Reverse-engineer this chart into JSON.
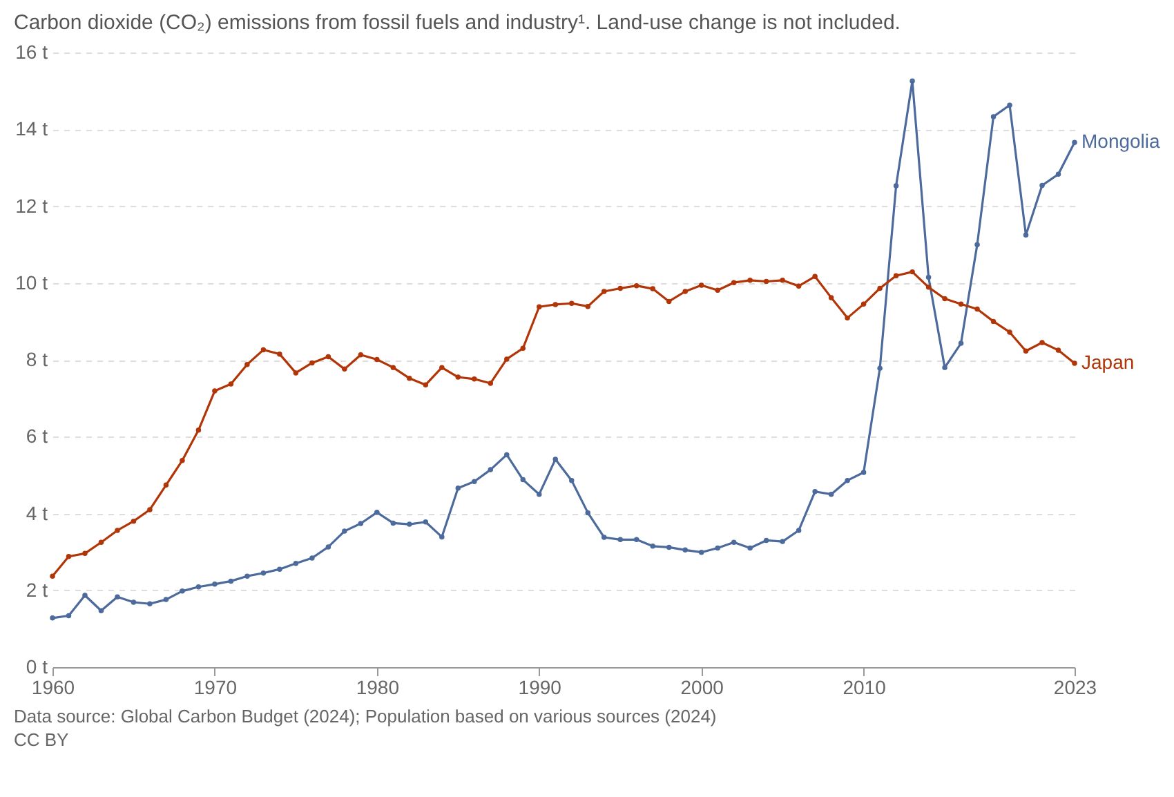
{
  "chart_data": {
    "type": "line",
    "title": "Carbon dioxide (CO₂) emissions from fossil fuels and industry¹. Land-use change is not included.",
    "annotations": [
      "Data source: Global Carbon Budget (2024); Population based on various sources (2024)",
      "CC BY"
    ],
    "x": [
      1960,
      1961,
      1962,
      1963,
      1964,
      1965,
      1966,
      1967,
      1968,
      1969,
      1970,
      1971,
      1972,
      1973,
      1974,
      1975,
      1976,
      1977,
      1978,
      1979,
      1980,
      1981,
      1982,
      1983,
      1984,
      1985,
      1986,
      1987,
      1988,
      1989,
      1990,
      1991,
      1992,
      1993,
      1994,
      1995,
      1996,
      1997,
      1998,
      1999,
      2000,
      2001,
      2002,
      2003,
      2004,
      2005,
      2006,
      2007,
      2008,
      2009,
      2010,
      2011,
      2012,
      2013,
      2014,
      2015,
      2016,
      2017,
      2018,
      2019,
      2020,
      2021,
      2022,
      2023
    ],
    "series": [
      {
        "name": "Mongolia",
        "color": "#4c6a9c",
        "values": [
          1.28,
          1.34,
          1.87,
          1.47,
          1.83,
          1.69,
          1.65,
          1.76,
          1.98,
          2.09,
          2.16,
          2.24,
          2.37,
          2.45,
          2.55,
          2.7,
          2.84,
          3.13,
          3.54,
          3.74,
          4.03,
          3.75,
          3.72,
          3.78,
          3.39,
          4.66,
          4.83,
          5.14,
          5.53,
          4.88,
          4.5,
          5.41,
          4.86,
          4.02,
          3.38,
          3.32,
          3.32,
          3.15,
          3.12,
          3.05,
          2.99,
          3.1,
          3.25,
          3.1,
          3.3,
          3.27,
          3.56,
          4.57,
          4.5,
          4.86,
          5.07,
          7.78,
          12.53,
          15.26,
          10.15,
          7.8,
          8.43,
          11.0,
          14.33,
          14.63,
          11.25,
          12.54,
          12.83,
          13.66
        ]
      },
      {
        "name": "Japan",
        "color": "#b13507",
        "values": [
          2.37,
          2.88,
          2.96,
          3.25,
          3.56,
          3.8,
          4.1,
          4.74,
          5.38,
          6.17,
          7.19,
          7.37,
          7.88,
          8.26,
          8.15,
          7.66,
          7.92,
          8.08,
          7.76,
          8.13,
          8.01,
          7.8,
          7.52,
          7.35,
          7.8,
          7.55,
          7.5,
          7.39,
          8.02,
          8.3,
          9.38,
          9.44,
          9.47,
          9.39,
          9.78,
          9.86,
          9.93,
          9.85,
          9.52,
          9.78,
          9.94,
          9.81,
          10.01,
          10.07,
          10.04,
          10.07,
          9.92,
          10.17,
          9.62,
          9.09,
          9.45,
          9.86,
          10.19,
          10.29,
          9.89,
          9.59,
          9.45,
          9.32,
          9.0,
          8.72,
          8.23,
          8.45,
          8.25,
          7.91
        ]
      }
    ],
    "xlim": [
      1960,
      2023
    ],
    "xticks": [
      1960,
      1970,
      1980,
      1990,
      2000,
      2010,
      2023
    ],
    "ylim": [
      0,
      16
    ],
    "yticks": [
      {
        "value": 0,
        "label": "0 t"
      },
      {
        "value": 2,
        "label": "2 t"
      },
      {
        "value": 4,
        "label": "4 t"
      },
      {
        "value": 6,
        "label": "6 t"
      },
      {
        "value": 8,
        "label": "8 t"
      },
      {
        "value": 10,
        "label": "10 t"
      },
      {
        "value": 12,
        "label": "12 t"
      },
      {
        "value": 14,
        "label": "14 t"
      },
      {
        "value": 16,
        "label": "16 t"
      }
    ],
    "grid": "y",
    "legend": false,
    "marker": "circle",
    "line_style": "solid"
  }
}
